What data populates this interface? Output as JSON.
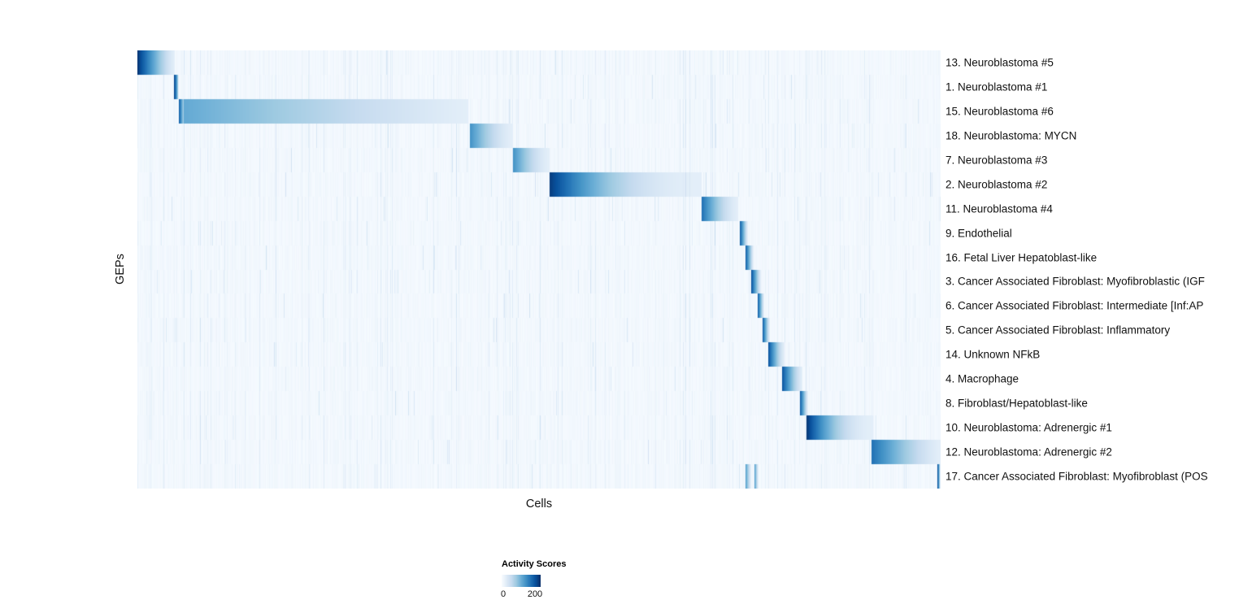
{
  "chart_data": {
    "type": "heatmap",
    "title": "",
    "xlabel": "Cells",
    "ylabel": "GEPs",
    "colormap": "Blues",
    "grid": false,
    "x_tick_labels_shown": false,
    "legend": {
      "title": "Activity Scores",
      "min_label": "0",
      "max_label": "200",
      "min_value": 0,
      "max_value": 200,
      "position": "bottom-left"
    },
    "background": {
      "base_intensity": 0.02,
      "stripe_noise": true,
      "note": "cells are ordered by GEP assignment; each GEP shows a dark-to-light activity block over its assigned cells with faint vertical cross-activity stripes elsewhere"
    },
    "rows": [
      {
        "label": "13. Neuroblastoma #5",
        "blocks": [
          {
            "start_frac": 0.0,
            "end_frac": 0.047,
            "peak": 0.97,
            "gamma": 1.2
          }
        ]
      },
      {
        "label": "1. Neuroblastoma #1",
        "blocks": [
          {
            "start_frac": 0.0455,
            "end_frac": 0.0515,
            "peak": 0.9,
            "gamma": 0.6
          }
        ]
      },
      {
        "label": "15. Neuroblastoma #6",
        "blocks": [
          {
            "start_frac": 0.0515,
            "end_frac": 0.06,
            "peak": 0.8,
            "gamma": 0.8
          },
          {
            "start_frac": 0.058,
            "end_frac": 0.412,
            "peak": 0.52,
            "gamma": 1.1
          }
        ]
      },
      {
        "label": "18. Neuroblastoma: MYCN",
        "blocks": [
          {
            "start_frac": 0.414,
            "end_frac": 0.468,
            "peak": 0.62,
            "gamma": 1.5
          }
        ]
      },
      {
        "label": "7. Neuroblastoma #3",
        "blocks": [
          {
            "start_frac": 0.468,
            "end_frac": 0.513,
            "peak": 0.62,
            "gamma": 1.5
          }
        ]
      },
      {
        "label": "2. Neuroblastoma #2",
        "blocks": [
          {
            "start_frac": 0.513,
            "end_frac": 0.702,
            "peak": 0.95,
            "gamma": 2.2
          }
        ]
      },
      {
        "label": "11. Neuroblastoma #4",
        "blocks": [
          {
            "start_frac": 0.702,
            "end_frac": 0.748,
            "peak": 0.75,
            "gamma": 1.5
          }
        ]
      },
      {
        "label": "9. Endothelial",
        "blocks": [
          {
            "start_frac": 0.7505,
            "end_frac": 0.76,
            "peak": 0.8,
            "gamma": 1.0
          }
        ]
      },
      {
        "label": "16. Fetal Liver Hepatoblast-like",
        "blocks": [
          {
            "start_frac": 0.757,
            "end_frac": 0.767,
            "peak": 0.8,
            "gamma": 1.0
          }
        ]
      },
      {
        "label": "3. Cancer Associated Fibroblast: Myofibroblastic (IGF",
        "blocks": [
          {
            "start_frac": 0.764,
            "end_frac": 0.776,
            "peak": 0.85,
            "gamma": 1.0
          }
        ]
      },
      {
        "label": "6. Cancer Associated Fibroblast: Intermediate [Inf:AP",
        "blocks": [
          {
            "start_frac": 0.772,
            "end_frac": 0.78,
            "peak": 0.8,
            "gamma": 1.0
          }
        ]
      },
      {
        "label": "5. Cancer Associated Fibroblast: Inflammatory",
        "blocks": [
          {
            "start_frac": 0.778,
            "end_frac": 0.787,
            "peak": 0.8,
            "gamma": 1.0
          }
        ]
      },
      {
        "label": "14. Unknown NFkB",
        "blocks": [
          {
            "start_frac": 0.785,
            "end_frac": 0.806,
            "peak": 0.85,
            "gamma": 1.2
          }
        ]
      },
      {
        "label": "4. Macrophage",
        "blocks": [
          {
            "start_frac": 0.803,
            "end_frac": 0.828,
            "peak": 0.85,
            "gamma": 1.2
          }
        ]
      },
      {
        "label": "8. Fibroblast/Hepatoblast-like",
        "blocks": [
          {
            "start_frac": 0.825,
            "end_frac": 0.835,
            "peak": 0.8,
            "gamma": 1.0
          }
        ]
      },
      {
        "label": "10. Neuroblastoma: Adrenergic #1",
        "blocks": [
          {
            "start_frac": 0.833,
            "end_frac": 0.916,
            "peak": 0.97,
            "gamma": 2.0
          }
        ]
      },
      {
        "label": "12. Neuroblastoma: Adrenergic #2",
        "blocks": [
          {
            "start_frac": 0.914,
            "end_frac": 1.0,
            "peak": 0.75,
            "gamma": 1.3
          }
        ]
      },
      {
        "label": "17. Cancer Associated Fibroblast: Myofibroblast (POS",
        "blocks": [
          {
            "start_frac": 0.757,
            "end_frac": 0.764,
            "peak": 0.55,
            "gamma": 1.0
          },
          {
            "start_frac": 0.768,
            "end_frac": 0.773,
            "peak": 0.55,
            "gamma": 1.0
          },
          {
            "start_frac": 0.996,
            "end_frac": 1.0,
            "peak": 0.85,
            "gamma": 0.8
          }
        ]
      }
    ]
  }
}
